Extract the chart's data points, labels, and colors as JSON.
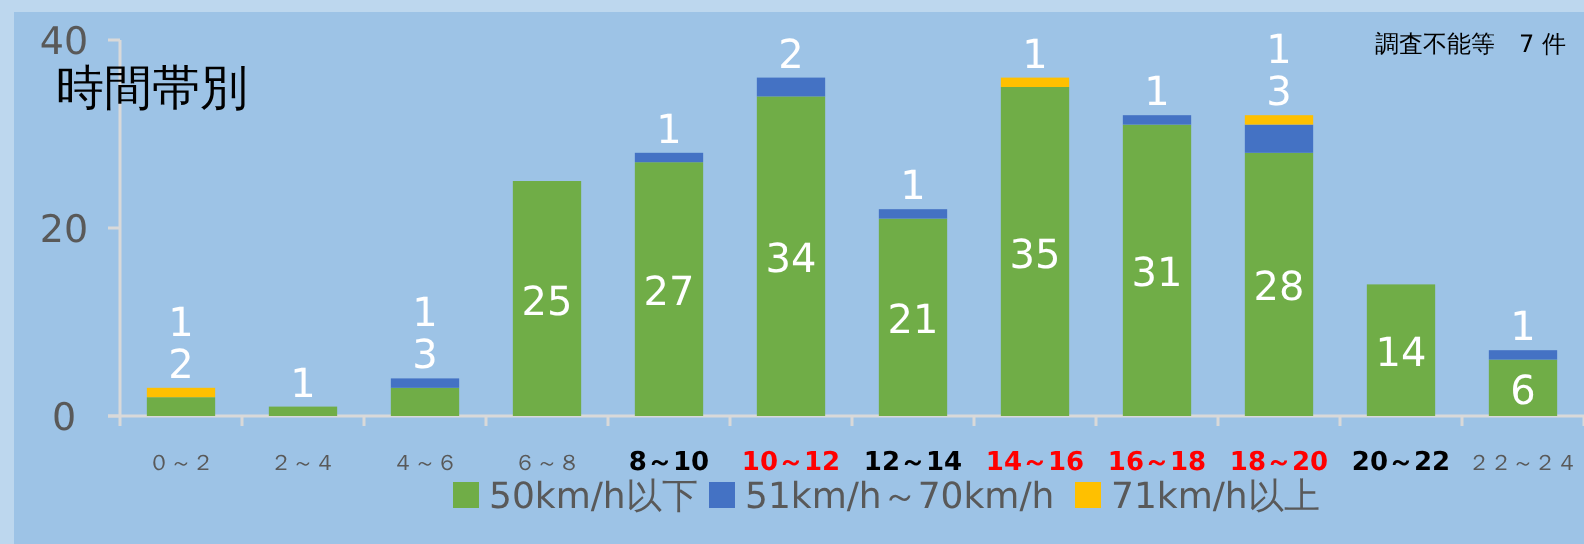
{
  "chart_data": {
    "type": "bar",
    "title": "時間帯別",
    "annotations": [
      "調査不能等　7 件"
    ],
    "categories": [
      "０～２",
      "２～４",
      "４～６",
      "６～８",
      "8～10",
      "10～12",
      "12～14",
      "14～16",
      "16～18",
      "18～20",
      "20～22",
      "２２～２４"
    ],
    "stacked": true,
    "ylim": [
      0,
      40
    ],
    "yticks": [
      0,
      20,
      40
    ],
    "grid": false,
    "legend": "bottom",
    "data_labels": true,
    "series": [
      {
        "name": "50km/h以下",
        "color": "#70ad47",
        "values": [
          2,
          1,
          3,
          25,
          27,
          34,
          21,
          35,
          31,
          28,
          14,
          6
        ]
      },
      {
        "name": "51km/h～70km/h",
        "color": "#4472c4",
        "values": [
          null,
          null,
          1,
          null,
          1,
          2,
          1,
          null,
          1,
          3,
          null,
          1
        ]
      },
      {
        "name": "71km/h以上",
        "color": "#ffc000",
        "values": [
          1,
          null,
          null,
          null,
          null,
          null,
          null,
          1,
          null,
          1,
          null,
          null
        ]
      }
    ]
  }
}
